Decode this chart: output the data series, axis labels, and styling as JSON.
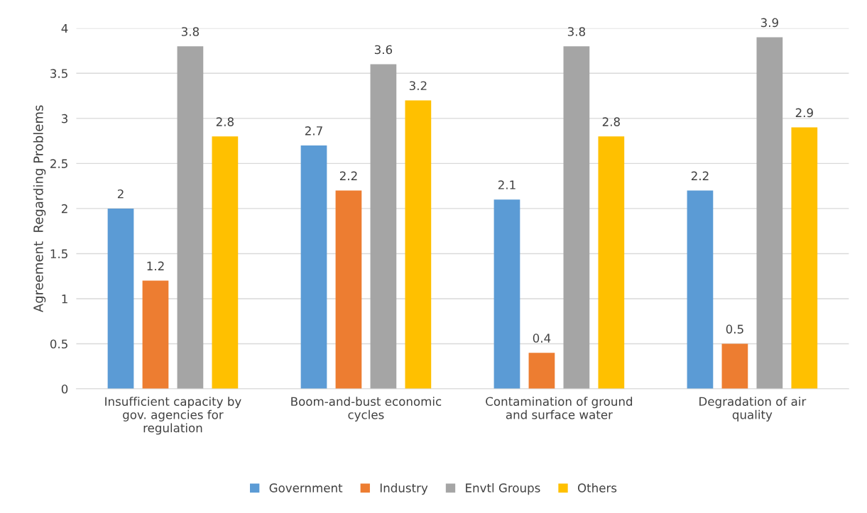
{
  "chart_data": {
    "type": "bar",
    "ylabel": "Agreement  Regarding Problems",
    "categories": [
      "Insufficient capacity by gov. agencies for regulation",
      "Boom-and-bust economic cycles",
      "Contamination of ground and surface water",
      "Degradation of air quality"
    ],
    "series": [
      {
        "name": "Government",
        "color": "#5b9bd5",
        "values": [
          2,
          2.7,
          2.1,
          2.2
        ]
      },
      {
        "name": "Industry",
        "color": "#ed7d31",
        "values": [
          1.2,
          2.2,
          0.4,
          0.5
        ]
      },
      {
        "name": "Envtl Groups",
        "color": "#a5a5a5",
        "values": [
          3.8,
          3.6,
          3.8,
          3.9
        ]
      },
      {
        "name": "Others",
        "color": "#ffc000",
        "values": [
          2.8,
          3.2,
          2.8,
          2.9
        ]
      }
    ],
    "ylim": [
      0,
      4
    ],
    "yticks": [
      0,
      0.5,
      1,
      1.5,
      2,
      2.5,
      3,
      3.5,
      4
    ],
    "grid": "y",
    "legend": "bottom",
    "data_labels": true
  }
}
